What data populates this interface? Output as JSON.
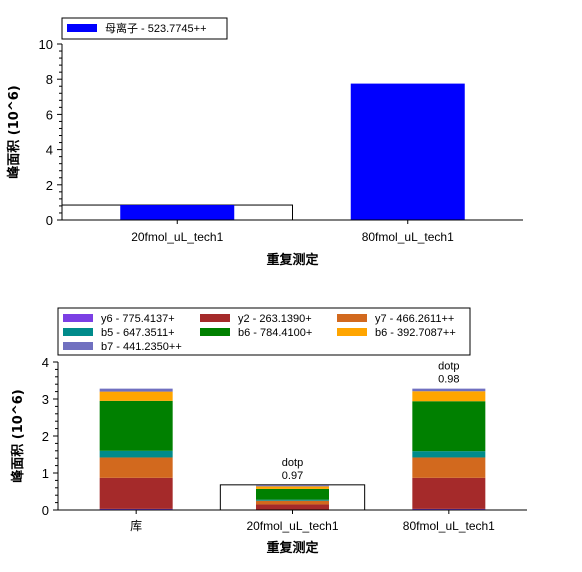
{
  "chart_data": [
    {
      "type": "bar",
      "xlabel": "重复测定",
      "ylabel": "峰面积 (10^6)",
      "ylim": [
        0,
        10
      ],
      "yticks": [
        0,
        2,
        4,
        6,
        8,
        10
      ],
      "categories": [
        "20fmol_uL_tech1",
        "80fmol_uL_tech1"
      ],
      "series": [
        {
          "name": "母离子 - 523.7745++",
          "color": "#0000ff",
          "values": [
            0.85,
            7.75
          ]
        }
      ],
      "library_box": {
        "show": true,
        "category": "20fmol_uL_tech1",
        "value": 0.85
      },
      "legend": "top-left"
    },
    {
      "type": "bar",
      "stacked": true,
      "xlabel": "重复测定",
      "ylabel": "峰面积 (10^6)",
      "ylim": [
        0,
        4
      ],
      "yticks": [
        0,
        1,
        2,
        3,
        4
      ],
      "categories": [
        "库",
        "20fmol_uL_tech1",
        "80fmol_uL_tech1"
      ],
      "series": [
        {
          "name": "y6 - 775.4137+",
          "color": "#7b3fe4",
          "values": [
            0.03,
            0.01,
            0.03
          ]
        },
        {
          "name": "y2 - 263.1390+",
          "color": "#a52a2a",
          "values": [
            0.84,
            0.14,
            0.84
          ]
        },
        {
          "name": "y7 - 466.2611++",
          "color": "#d2691e",
          "values": [
            0.55,
            0.1,
            0.55
          ]
        },
        {
          "name": "b5 - 647.3511+",
          "color": "#008b8b",
          "values": [
            0.18,
            0.03,
            0.17
          ]
        },
        {
          "name": "b6 - 784.4100+",
          "color": "#008000",
          "values": [
            1.35,
            0.29,
            1.35
          ]
        },
        {
          "name": "b6 - 392.7087++",
          "color": "#ffa500",
          "values": [
            0.25,
            0.07,
            0.27
          ]
        },
        {
          "name": "b7 - 441.2350++",
          "color": "#7070c0",
          "values": [
            0.08,
            0.03,
            0.07
          ]
        }
      ],
      "library_box": {
        "show": true,
        "category": "20fmol_uL_tech1",
        "value": 0.68
      },
      "annotations": [
        {
          "category": "20fmol_uL_tech1",
          "lines": [
            "dotp",
            "0.97"
          ]
        },
        {
          "category": "80fmol_uL_tech1",
          "lines": [
            "dotp",
            "0.98"
          ]
        }
      ],
      "legend": "top"
    }
  ]
}
